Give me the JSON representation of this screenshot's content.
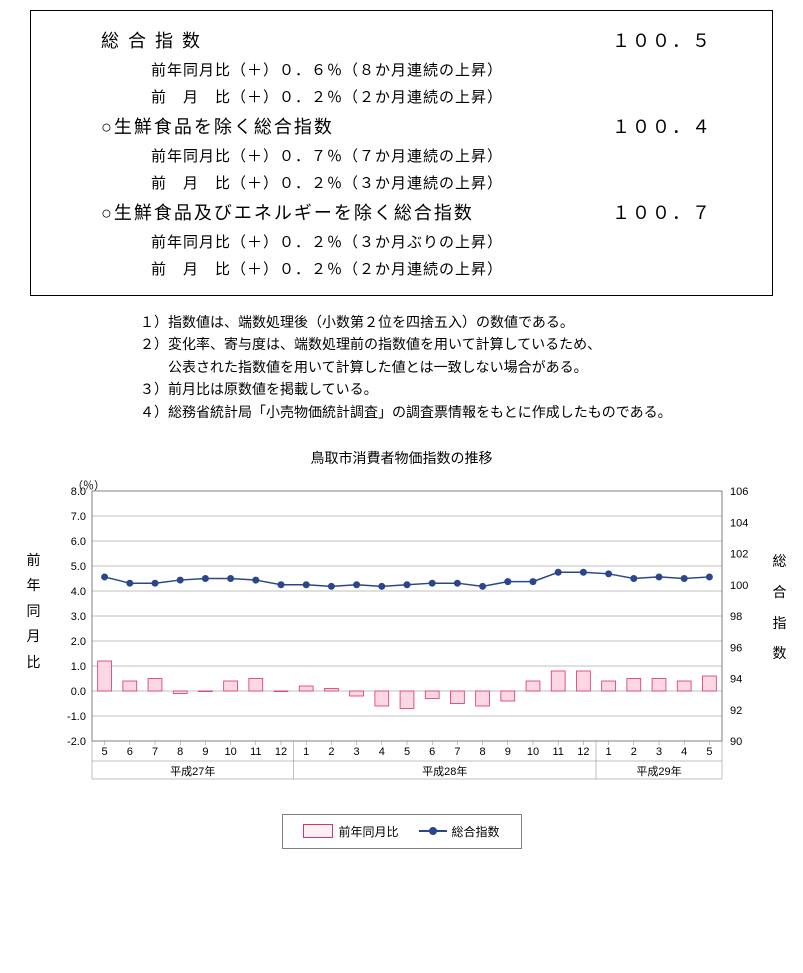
{
  "summary": {
    "index1": {
      "title": "総 合 指 数",
      "value": "１００．５",
      "yoy": "前年同月比（＋）０．６％（８か月連続の上昇）",
      "mom": "前　月　比（＋）０．２％（２か月連続の上昇）"
    },
    "index2": {
      "title": "○生鮮食品を除く総合指数",
      "value": "１００．４",
      "yoy": "前年同月比（＋）０．７％（７か月連続の上昇）",
      "mom": "前　月　比（＋）０．２％（３か月連続の上昇）"
    },
    "index3": {
      "title": "○生鮮食品及びエネルギーを除く総合指数",
      "value": "１００．７",
      "yoy": "前年同月比（＋）０．２％（３か月ぶりの上昇）",
      "mom": "前　月　比（＋）０．２％（２か月連続の上昇）"
    }
  },
  "notes": {
    "n1": "１）指数値は、端数処理後（小数第２位を四捨五入）の数値である。",
    "n2": "２）変化率、寄与度は、端数処理前の指数値を用いて計算しているため、",
    "n2b": "　　公表された指数値を用いて計算した値とは一致しない場合がある。",
    "n3": "３）前月比は原数値を掲載している。",
    "n4": "４）総務省統計局「小売物価統計調査」の調査票情報をもとに作成したものである。"
  },
  "chart": {
    "title": "鳥取市消費者物価指数の推移",
    "unit_left": "（％）",
    "ylabel_left": "前年同月比",
    "ylabel_right": "総合指数",
    "ylim_left": [
      -2.0,
      8.0
    ],
    "ytick_step_left": 1.0,
    "ylim_right": [
      90,
      106
    ],
    "ytick_step_right": 2,
    "x_months": [
      "5",
      "6",
      "7",
      "8",
      "9",
      "10",
      "11",
      "12",
      "1",
      "2",
      "3",
      "4",
      "5",
      "6",
      "7",
      "8",
      "9",
      "10",
      "11",
      "12",
      "1",
      "2",
      "3",
      "4",
      "5"
    ],
    "x_years": [
      {
        "label": "平成27年",
        "span": 8
      },
      {
        "label": "平成28年",
        "span": 12
      },
      {
        "label": "平成29年",
        "span": 5
      }
    ],
    "bar_values": [
      1.2,
      0.4,
      0.5,
      -0.1,
      0.0,
      0.4,
      0.5,
      0.0,
      0.2,
      0.1,
      -0.2,
      -0.6,
      -0.7,
      -0.3,
      -0.5,
      -0.6,
      -0.4,
      0.4,
      0.8,
      0.8,
      0.4,
      0.5,
      0.5,
      0.4,
      0.6
    ],
    "line_values": [
      100.5,
      100.1,
      100.1,
      100.3,
      100.4,
      100.4,
      100.3,
      100.0,
      100.0,
      99.9,
      100.0,
      99.9,
      100.0,
      100.1,
      100.1,
      99.9,
      100.2,
      100.2,
      100.8,
      100.8,
      100.7,
      100.4,
      100.5,
      100.4,
      100.5
    ],
    "bar_fill": "#fdd7e4",
    "bar_stroke": "#d6336c",
    "line_color": "#2b468b",
    "marker_color": "#2b468b",
    "grid_color": "#808080",
    "axis_color": "#808080",
    "axis_font": "11px",
    "legend": {
      "bar": "前年同月比",
      "line": "総合指数"
    }
  }
}
